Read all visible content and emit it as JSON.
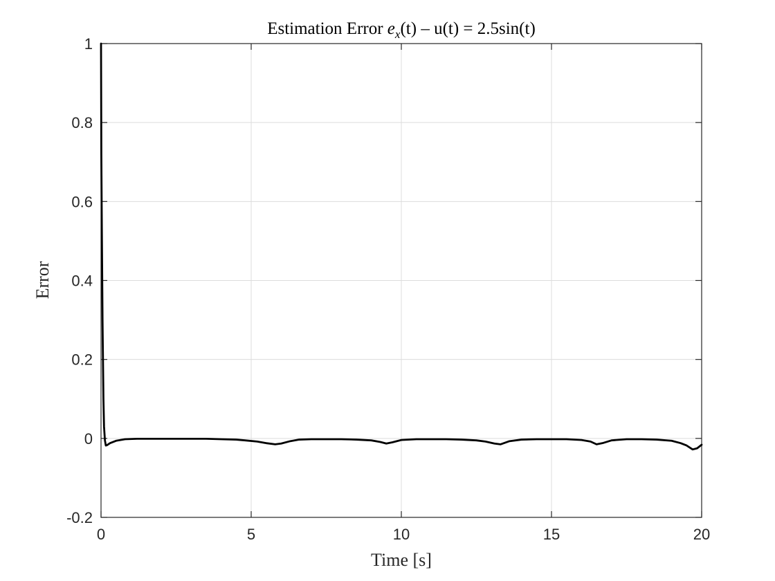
{
  "chart_data": {
    "type": "line",
    "title_prefix": "Estimation Error ",
    "title_math_e": "e",
    "title_math_sub": "x",
    "title_math_t": "(t)",
    "title_suffix": " – u(t) = 2.5sin(t)",
    "xlabel": "Time [s]",
    "ylabel": "Error",
    "xlim": [
      0,
      20
    ],
    "ylim": [
      -0.2,
      1
    ],
    "xticks": [
      0,
      5,
      10,
      15,
      20
    ],
    "xtick_labels": [
      "0",
      "5",
      "10",
      "15",
      "20"
    ],
    "yticks": [
      -0.2,
      0,
      0.2,
      0.4,
      0.6,
      0.8,
      1
    ],
    "ytick_labels": [
      "-0.2",
      "0",
      "0.2",
      "0.4",
      "0.6",
      "0.8",
      "1"
    ],
    "grid": true,
    "series": [
      {
        "color": "#000000",
        "x": [
          0,
          0.01,
          0.03,
          0.05,
          0.08,
          0.1,
          0.13,
          0.16,
          0.2,
          0.3,
          0.5,
          0.8,
          1.2,
          1.6,
          2.0,
          2.5,
          3.0,
          3.5,
          4.0,
          4.5,
          4.8,
          5.2,
          5.5,
          5.8,
          6.0,
          6.3,
          6.6,
          7.0,
          7.5,
          8.0,
          8.5,
          9.0,
          9.3,
          9.5,
          9.7,
          10.0,
          10.5,
          11.0,
          11.5,
          12.0,
          12.5,
          12.8,
          13.1,
          13.3,
          13.6,
          14.0,
          14.5,
          15.0,
          15.5,
          16.0,
          16.3,
          16.5,
          16.7,
          17.0,
          17.5,
          18.0,
          18.5,
          19.0,
          19.3,
          19.5,
          19.7,
          19.85,
          20.0
        ],
        "y": [
          1.0,
          0.72,
          0.5,
          0.3,
          0.1,
          0.03,
          -0.005,
          -0.018,
          -0.017,
          -0.012,
          -0.006,
          -0.002,
          -0.001,
          -0.001,
          -0.001,
          -0.001,
          -0.001,
          -0.001,
          -0.002,
          -0.003,
          -0.005,
          -0.008,
          -0.012,
          -0.015,
          -0.013,
          -0.007,
          -0.003,
          -0.002,
          -0.002,
          -0.002,
          -0.003,
          -0.005,
          -0.009,
          -0.013,
          -0.01,
          -0.004,
          -0.002,
          -0.002,
          -0.002,
          -0.003,
          -0.005,
          -0.008,
          -0.013,
          -0.015,
          -0.007,
          -0.003,
          -0.002,
          -0.002,
          -0.002,
          -0.004,
          -0.008,
          -0.015,
          -0.012,
          -0.005,
          -0.002,
          -0.002,
          -0.003,
          -0.006,
          -0.012,
          -0.018,
          -0.028,
          -0.025,
          -0.016
        ]
      }
    ]
  }
}
